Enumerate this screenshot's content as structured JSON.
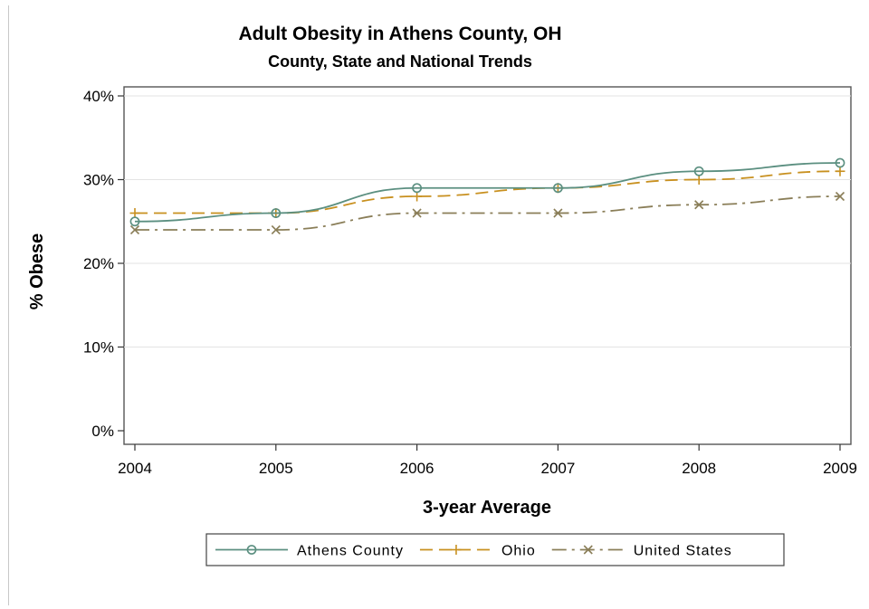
{
  "chart_data": {
    "type": "line",
    "title": "Adult Obesity in Athens County, OH",
    "subtitle": "County, State and National Trends",
    "xlabel": "3-year Average",
    "ylabel": "% Obese",
    "x": [
      2004,
      2005,
      2006,
      2007,
      2008,
      2009
    ],
    "x_ticks": [
      "2004",
      "2005",
      "2006",
      "2007",
      "2008",
      "2009"
    ],
    "y_ticks": [
      "0%",
      "10%",
      "20%",
      "30%",
      "40%"
    ],
    "ylim": [
      0,
      40
    ],
    "grid": "horizontal",
    "legend_position": "bottom",
    "series": [
      {
        "name": "Athens County",
        "values": [
          25,
          26,
          29,
          29,
          31,
          32
        ],
        "color": "#5b8f80",
        "marker": "circle",
        "dash": "solid"
      },
      {
        "name": "Ohio",
        "values": [
          26,
          26,
          28,
          29,
          30,
          31
        ],
        "color": "#c8901f",
        "marker": "plus",
        "dash": "dashed"
      },
      {
        "name": "United States",
        "values": [
          24,
          24,
          26,
          26,
          27,
          28
        ],
        "color": "#8a7e58",
        "marker": "x",
        "dash": "dashdot"
      }
    ]
  }
}
